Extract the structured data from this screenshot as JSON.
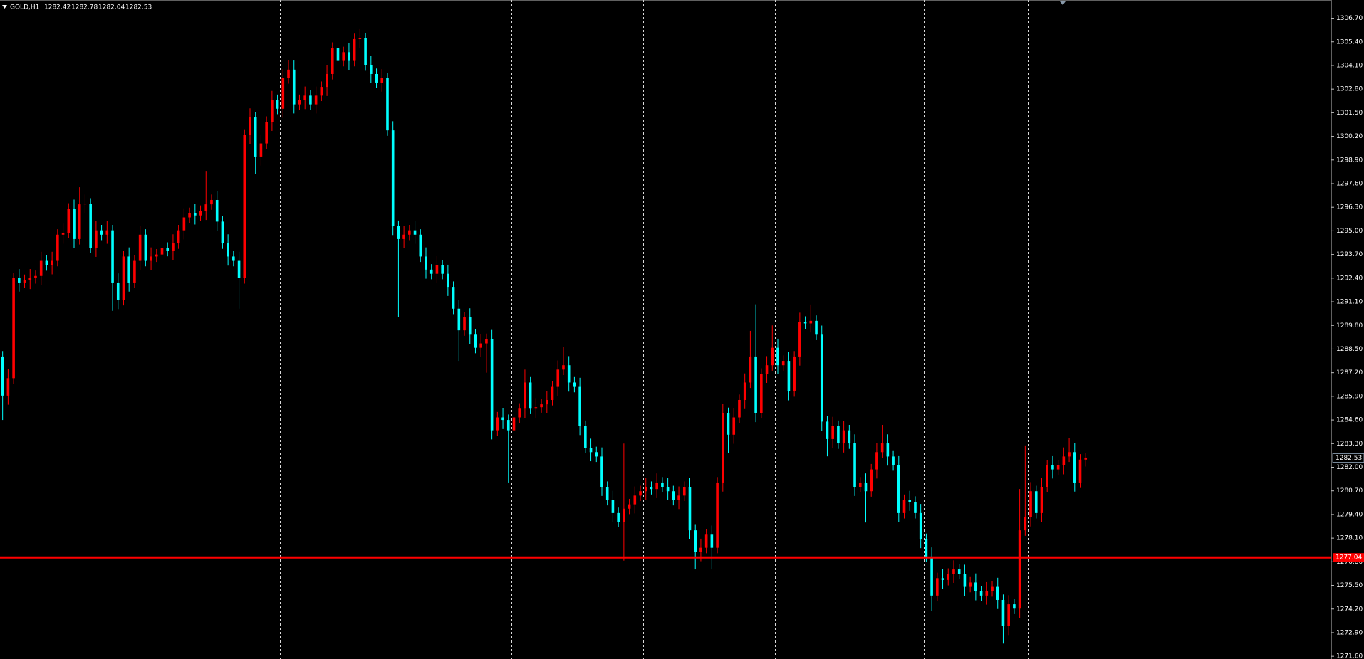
{
  "chart_data": {
    "type": "candlestick",
    "symbol": "GOLD,H1",
    "bull_color": "#ff0000",
    "bear_color": "#00ffff",
    "grid": false,
    "bid": 1282.53,
    "bid_color": "#778899",
    "level": 1277.04,
    "level_color": "#ff0000",
    "separators": [
      24,
      48,
      51,
      70,
      93,
      117,
      141,
      165,
      168,
      187,
      211
    ],
    "ylim": [
      1271.45,
      1307.7
    ],
    "yticks": [
      {
        "value": 1271.6,
        "label": "1271.60"
      },
      {
        "value": 1272.9,
        "label": "1272.90"
      },
      {
        "value": 1274.2,
        "label": "1274.20"
      },
      {
        "value": 1275.5,
        "label": "1275.50"
      },
      {
        "value": 1276.8,
        "label": "1276.80"
      },
      {
        "value": 1278.1,
        "label": "1278.10"
      },
      {
        "value": 1279.4,
        "label": "1279.40"
      },
      {
        "value": 1280.7,
        "label": "1280.70"
      },
      {
        "value": 1282.0,
        "label": "1282.00"
      },
      {
        "value": 1283.3,
        "label": "1283.30"
      },
      {
        "value": 1284.6,
        "label": "1284.60"
      },
      {
        "value": 1285.9,
        "label": "1285.90"
      },
      {
        "value": 1287.2,
        "label": "1287.20"
      },
      {
        "value": 1288.5,
        "label": "1288.50"
      },
      {
        "value": 1289.8,
        "label": "1289.80"
      },
      {
        "value": 1291.1,
        "label": "1291.10"
      },
      {
        "value": 1292.4,
        "label": "1292.40"
      },
      {
        "value": 1293.7,
        "label": "1293.70"
      },
      {
        "value": 1295.0,
        "label": "1295.00"
      },
      {
        "value": 1296.3,
        "label": "1296.30"
      },
      {
        "value": 1297.6,
        "label": "1297.60"
      },
      {
        "value": 1298.9,
        "label": "1298.90"
      },
      {
        "value": 1300.2,
        "label": "1300.20"
      },
      {
        "value": 1301.5,
        "label": "1301.50"
      },
      {
        "value": 1302.8,
        "label": "1302.80"
      },
      {
        "value": 1304.1,
        "label": "1304.10"
      },
      {
        "value": 1305.4,
        "label": "1305.40"
      },
      {
        "value": 1306.7,
        "label": "1306.70"
      }
    ],
    "open": [
      1288.09,
      1285.94,
      1286.9,
      1292.4,
      1292.16,
      1292.3,
      1292.4,
      1292.52,
      1293.35,
      1293.11,
      1293.35,
      1294.79,
      1294.9,
      1296.22,
      1294.55,
      1296.46,
      1296.5,
      1294.07,
      1295.03,
      1294.79,
      1295.03,
      1292.16,
      1291.2,
      1293.59,
      1292.16,
      1293.35,
      1294.79,
      1293.35,
      1293.59,
      1293.7,
      1294.07,
      1293.9,
      1294.31,
      1295.03,
      1295.74,
      1295.98,
      1295.85,
      1296.1,
      1296.46,
      1296.7,
      1295.51,
      1294.31,
      1293.59,
      1293.35,
      1292.4,
      1300.29,
      1301.24,
      1299.09,
      1299.81,
      1301.0,
      1302.2,
      1301.72,
      1303.4,
      1303.87,
      1301.96,
      1302.2,
      1302.44,
      1301.96,
      1302.44,
      1302.92,
      1303.63,
      1305.07,
      1304.35,
      1304.83,
      1304.35,
      1305.55,
      1305.6,
      1304.11,
      1303.63,
      1303.16,
      1303.4,
      1300.53,
      1295.27,
      1294.55,
      1294.79,
      1295.03,
      1294.79,
      1293.59,
      1292.87,
      1292.64,
      1293.11,
      1292.64,
      1291.92,
      1290.72,
      1289.53,
      1290.24,
      1289.29,
      1288.57,
      1288.81,
      1289.05,
      1284.03,
      1284.74,
      1284.6,
      1284.03,
      1284.74,
      1285.22,
      1286.66,
      1285.22,
      1285.3,
      1285.46,
      1285.7,
      1286.42,
      1287.37,
      1287.61,
      1286.66,
      1286.42,
      1284.27,
      1283.07,
      1282.83,
      1282.59,
      1280.92,
      1280.2,
      1279.48,
      1279.0,
      1279.72,
      1279.96,
      1280.44,
      1280.68,
      1280.92,
      1280.8,
      1281.16,
      1280.92,
      1280.68,
      1280.2,
      1280.44,
      1280.92,
      1278.53,
      1277.33,
      1277.57,
      1278.29,
      1277.57,
      1281.16,
      1284.98,
      1283.79,
      1284.74,
      1285.7,
      1286.66,
      1288.09,
      1284.98,
      1287.14,
      1287.61,
      1288.57,
      1287.61,
      1287.85,
      1286.18,
      1288.09,
      1290.0,
      1289.91,
      1290.05,
      1289.29,
      1284.51,
      1283.55,
      1284.27,
      1283.31,
      1284.03,
      1283.31,
      1280.92,
      1281.16,
      1280.68,
      1281.88,
      1282.83,
      1283.31,
      1282.59,
      1282.11,
      1279.48,
      1280.2,
      1280.1,
      1279.48,
      1278.05,
      1277.09,
      1274.94,
      1275.9,
      1275.8,
      1276.14,
      1276.38,
      1276.14,
      1275.42,
      1275.66,
      1275.18,
      1274.94,
      1275.18,
      1275.42,
      1274.7,
      1273.27,
      1274.46,
      1274.22,
      1278.53,
      1279.24,
      1280.68,
      1279.48,
      1280.92,
      1282.11,
      1281.88,
      1282.11,
      1282.59,
      1282.83,
      1281.16,
      1282.42
    ],
    "high": [
      1288.39,
      1287.4,
      1292.7,
      1292.9,
      1292.6,
      1292.9,
      1292.82,
      1293.85,
      1293.65,
      1293.85,
      1295.09,
      1295.4,
      1296.52,
      1296.72,
      1297.4,
      1297.0,
      1296.8,
      1295.53,
      1295.33,
      1295.53,
      1295.33,
      1292.66,
      1293.89,
      1294.09,
      1293.65,
      1295.29,
      1295.09,
      1294.09,
      1294.0,
      1294.57,
      1294.37,
      1294.81,
      1295.33,
      1296.24,
      1296.28,
      1296.48,
      1296.4,
      1298.3,
      1297.0,
      1297.2,
      1295.81,
      1294.81,
      1293.89,
      1293.85,
      1300.59,
      1301.74,
      1301.54,
      1300.31,
      1301.3,
      1302.7,
      1302.5,
      1303.9,
      1304.4,
      1304.37,
      1302.5,
      1302.94,
      1302.74,
      1302.94,
      1303.22,
      1304.13,
      1305.37,
      1305.57,
      1305.13,
      1305.33,
      1305.85,
      1306.1,
      1305.9,
      1304.61,
      1303.93,
      1303.9,
      1303.7,
      1301.03,
      1295.57,
      1295.29,
      1295.33,
      1295.53,
      1295.09,
      1294.09,
      1293.17,
      1293.61,
      1293.41,
      1293.14,
      1292.22,
      1291.22,
      1290.54,
      1290.74,
      1289.59,
      1289.31,
      1289.35,
      1289.55,
      1285.04,
      1285.24,
      1284.9,
      1285.24,
      1285.52,
      1287.37,
      1286.96,
      1285.8,
      1285.76,
      1286.2,
      1286.72,
      1287.87,
      1288.6,
      1288.11,
      1286.96,
      1286.92,
      1284.57,
      1283.57,
      1283.13,
      1283.09,
      1281.22,
      1280.7,
      1279.78,
      1283.3,
      1280.26,
      1280.94,
      1280.98,
      1281.42,
      1281.22,
      1281.66,
      1281.46,
      1281.42,
      1280.98,
      1280.94,
      1281.22,
      1281.42,
      1278.83,
      1278.07,
      1278.59,
      1278.79,
      1281.46,
      1285.48,
      1285.28,
      1285.24,
      1286.0,
      1287.16,
      1289.5,
      1290.96,
      1287.44,
      1288.11,
      1289.8,
      1289.07,
      1288.15,
      1288.35,
      1288.39,
      1290.5,
      1290.3,
      1290.95,
      1290.35,
      1289.79,
      1284.81,
      1284.77,
      1284.57,
      1284.53,
      1284.33,
      1283.81,
      1281.46,
      1281.66,
      1282.18,
      1283.33,
      1284.33,
      1283.81,
      1282.89,
      1282.61,
      1280.5,
      1280.7,
      1280.4,
      1279.98,
      1278.35,
      1277.59,
      1276.2,
      1276.4,
      1276.44,
      1276.88,
      1276.68,
      1276.64,
      1275.96,
      1276.16,
      1275.48,
      1275.68,
      1275.72,
      1275.92,
      1275.0,
      1274.96,
      1274.76,
      1280.8,
      1283.2,
      1281.18,
      1280.98,
      1281.42,
      1282.41,
      1282.61,
      1282.41,
      1283.09,
      1283.6,
      1283.33,
      1282.72,
      1282.78
    ],
    "low": [
      1284.6,
      1285.44,
      1286.6,
      1291.66,
      1291.86,
      1291.8,
      1292.1,
      1292.02,
      1292.81,
      1292.61,
      1293.05,
      1294.29,
      1294.6,
      1294.05,
      1294.25,
      1295.96,
      1293.77,
      1293.57,
      1294.49,
      1294.29,
      1290.6,
      1290.7,
      1290.9,
      1291.66,
      1291.86,
      1292.85,
      1293.05,
      1292.85,
      1293.29,
      1293.2,
      1293.6,
      1293.4,
      1294.01,
      1294.53,
      1295.44,
      1295.35,
      1295.55,
      1295.6,
      1296.16,
      1295.01,
      1294.01,
      1293.09,
      1293.05,
      1290.72,
      1292.1,
      1299.79,
      1298.14,
      1298.59,
      1299.51,
      1300.5,
      1301.42,
      1301.22,
      1303.1,
      1301.46,
      1301.66,
      1301.7,
      1301.66,
      1301.46,
      1302.14,
      1302.42,
      1303.33,
      1303.85,
      1304.05,
      1303.85,
      1304.05,
      1305.05,
      1303.81,
      1303.13,
      1302.86,
      1302.66,
      1300.23,
      1294.77,
      1290.24,
      1294.05,
      1294.49,
      1294.29,
      1293.29,
      1292.37,
      1292.34,
      1292.14,
      1292.34,
      1291.42,
      1290.42,
      1287.85,
      1289.23,
      1288.79,
      1288.27,
      1288.07,
      1287.2,
      1283.53,
      1283.73,
      1284.1,
      1281.16,
      1283.53,
      1284.44,
      1284.72,
      1284.92,
      1284.72,
      1285.0,
      1284.96,
      1285.4,
      1285.92,
      1287.07,
      1286.16,
      1286.12,
      1283.77,
      1282.77,
      1282.33,
      1282.29,
      1280.42,
      1279.9,
      1278.98,
      1278.7,
      1276.86,
      1279.42,
      1279.46,
      1280.14,
      1280.18,
      1280.5,
      1280.3,
      1280.62,
      1280.18,
      1279.9,
      1279.7,
      1280.14,
      1278.03,
      1276.38,
      1276.83,
      1277.27,
      1276.38,
      1277.27,
      1280.66,
      1282.8,
      1283.29,
      1284.44,
      1285.2,
      1286.36,
      1284.48,
      1284.68,
      1286.64,
      1287.31,
      1287.11,
      1287.31,
      1285.68,
      1285.88,
      1287.59,
      1289.61,
      1289.41,
      1288.99,
      1284.01,
      1282.6,
      1283.05,
      1283.01,
      1282.81,
      1283.01,
      1280.42,
      1280.62,
      1278.96,
      1280.38,
      1281.38,
      1282.53,
      1282.09,
      1281.81,
      1278.98,
      1279.18,
      1279.6,
      1279.18,
      1277.55,
      1276.79,
      1274.08,
      1274.64,
      1275.3,
      1275.5,
      1275.64,
      1275.84,
      1274.92,
      1275.12,
      1274.68,
      1274.64,
      1274.44,
      1274.88,
      1274.2,
      1272.3,
      1272.77,
      1273.92,
      1273.72,
      1278.23,
      1278.74,
      1279.18,
      1278.98,
      1280.62,
      1281.38,
      1281.58,
      1281.61,
      1282.29,
      1280.66,
      1280.86,
      1282.04
    ],
    "close": [
      1285.94,
      1286.9,
      1292.4,
      1292.16,
      1292.3,
      1292.4,
      1292.52,
      1293.35,
      1293.11,
      1293.35,
      1294.79,
      1294.9,
      1296.22,
      1294.55,
      1296.46,
      1296.5,
      1294.07,
      1295.03,
      1294.79,
      1295.03,
      1292.16,
      1291.2,
      1293.59,
      1292.16,
      1293.35,
      1294.79,
      1293.35,
      1293.59,
      1293.7,
      1294.07,
      1293.9,
      1294.31,
      1295.03,
      1295.74,
      1295.98,
      1295.85,
      1296.1,
      1296.46,
      1296.7,
      1295.51,
      1294.31,
      1293.59,
      1293.35,
      1292.4,
      1300.29,
      1301.24,
      1299.09,
      1299.81,
      1301.0,
      1302.2,
      1301.72,
      1303.4,
      1303.87,
      1301.96,
      1302.2,
      1302.44,
      1301.96,
      1302.44,
      1302.92,
      1303.63,
      1305.07,
      1304.35,
      1304.83,
      1304.35,
      1305.55,
      1305.6,
      1304.11,
      1303.63,
      1303.16,
      1303.4,
      1300.53,
      1295.27,
      1294.55,
      1294.79,
      1295.03,
      1294.79,
      1293.59,
      1292.87,
      1292.64,
      1293.11,
      1292.64,
      1291.92,
      1290.72,
      1289.53,
      1290.24,
      1289.29,
      1288.57,
      1288.81,
      1289.05,
      1284.03,
      1284.74,
      1284.6,
      1284.03,
      1284.74,
      1285.22,
      1286.66,
      1285.22,
      1285.3,
      1285.46,
      1285.7,
      1286.42,
      1287.37,
      1287.61,
      1286.66,
      1286.42,
      1284.27,
      1283.07,
      1282.83,
      1282.59,
      1280.92,
      1280.2,
      1279.48,
      1279.0,
      1279.72,
      1279.96,
      1280.44,
      1280.68,
      1280.92,
      1280.8,
      1281.16,
      1280.92,
      1280.68,
      1280.2,
      1280.44,
      1280.92,
      1278.53,
      1277.33,
      1277.57,
      1278.29,
      1277.57,
      1281.16,
      1284.98,
      1283.79,
      1284.74,
      1285.7,
      1286.66,
      1288.09,
      1284.98,
      1287.14,
      1287.61,
      1288.57,
      1287.61,
      1287.85,
      1286.18,
      1288.09,
      1290.0,
      1289.91,
      1290.05,
      1289.29,
      1284.51,
      1283.55,
      1284.27,
      1283.31,
      1284.03,
      1283.31,
      1280.92,
      1281.16,
      1280.68,
      1281.88,
      1282.83,
      1283.31,
      1282.59,
      1282.11,
      1279.48,
      1280.2,
      1280.1,
      1279.48,
      1278.05,
      1277.09,
      1274.94,
      1275.9,
      1275.8,
      1276.14,
      1276.38,
      1276.14,
      1275.42,
      1275.66,
      1275.18,
      1274.94,
      1275.18,
      1275.42,
      1274.7,
      1273.27,
      1274.46,
      1274.22,
      1278.53,
      1279.24,
      1280.68,
      1279.48,
      1280.92,
      1282.11,
      1281.88,
      1282.11,
      1282.59,
      1282.83,
      1281.16,
      1282.42,
      1282.53
    ]
  }
}
